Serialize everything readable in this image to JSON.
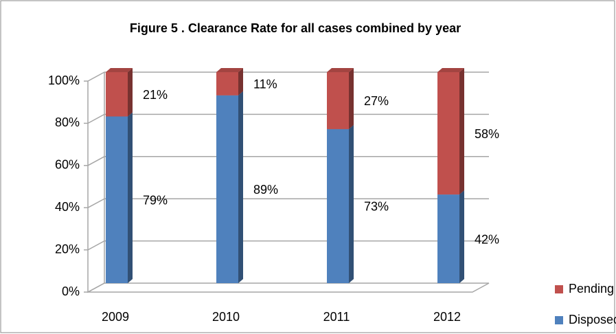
{
  "chart_data": {
    "type": "bar",
    "title": "Figure 5 . Clearance  Rate for all cases combined  by year",
    "categories": [
      "2009",
      "2010",
      "2011",
      "2012"
    ],
    "series": [
      {
        "name": "Disposed",
        "color": "#4f81bd",
        "values": [
          79,
          89,
          73,
          42
        ],
        "value_labels": [
          "79%",
          "89%",
          "73%",
          "42%"
        ]
      },
      {
        "name": "Pending",
        "color": "#c0504d",
        "values": [
          21,
          11,
          27,
          58
        ],
        "value_labels": [
          "21%",
          "11%",
          "27%",
          "58%"
        ]
      }
    ],
    "stacked": true,
    "ylim": [
      0,
      100
    ],
    "yticks": [
      {
        "value": 0,
        "label": "0%"
      },
      {
        "value": 20,
        "label": "20%"
      },
      {
        "value": 40,
        "label": "40%"
      },
      {
        "value": 60,
        "label": "60%"
      },
      {
        "value": 80,
        "label": "80%"
      },
      {
        "value": 100,
        "label": "100%"
      }
    ],
    "grid": true,
    "legend": "bottom-right"
  }
}
